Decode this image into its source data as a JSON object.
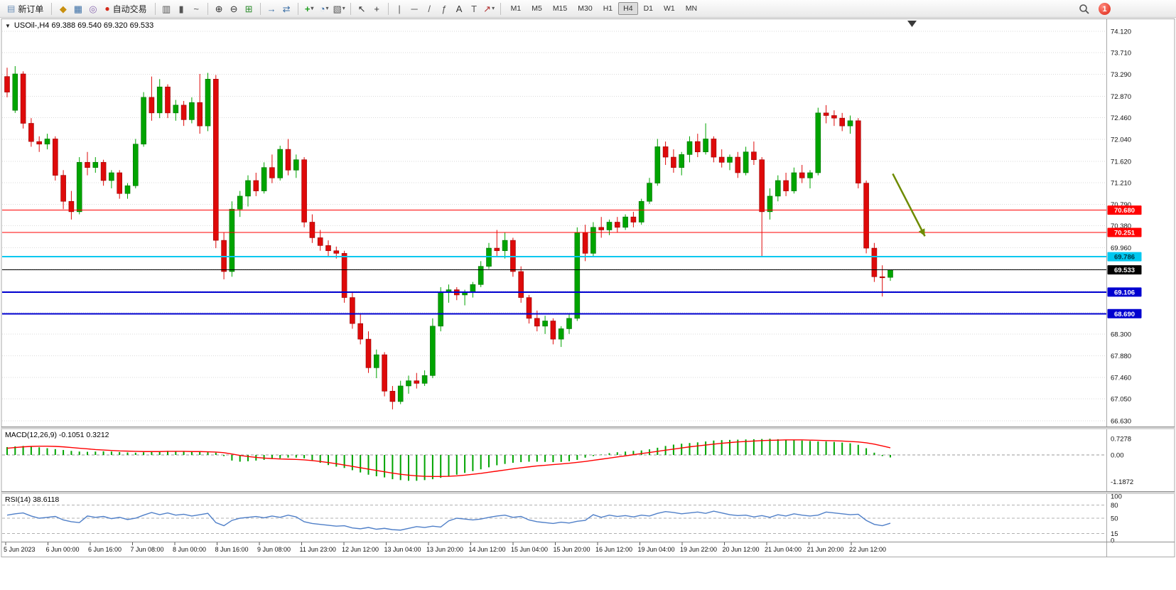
{
  "toolbar": {
    "new_order_label": "新订单",
    "auto_trading_label": "自动交易",
    "timeframes": [
      "M1",
      "M5",
      "M15",
      "M30",
      "H1",
      "H4",
      "D1",
      "W1",
      "MN"
    ],
    "active_timeframe": "H4",
    "notification_count": "1",
    "icons": {
      "new-order-icon": "▤",
      "market-watch-icon": "◆",
      "data-window-icon": "▦",
      "navigator-icon": "◎",
      "auto-trading-icon": "●",
      "bar-chart-icon": "▥",
      "candlestick-chart-icon": "▮",
      "line-chart-icon": "~",
      "zoom-in-icon": "⊕",
      "zoom-out-icon": "⊖",
      "tile-windows-icon": "⊞",
      "auto-scroll-icon": "→",
      "chart-shift-icon": "⇄",
      "add-indicator-icon": "+",
      "period-icon": "◔",
      "template-icon": "▧",
      "cursor-icon": "↖",
      "crosshair-icon": "+",
      "vertical-line-icon": "|",
      "horizontal-line-icon": "─",
      "trendline-icon": "/",
      "fibonacci-icon": "ƒ",
      "text-icon": "A",
      "label-icon": "T",
      "arrows-icon": "↗",
      "caret": "▾",
      "collapse-icon": "▼"
    }
  },
  "chart": {
    "symbol_text": "USOil-,H4 69.388 69.540 69.320 69.533"
  },
  "indicators": {
    "macd_label": "MACD(12,26,9) -0.1051 0.3212",
    "rsi_label": "RSI(14) 38.6118"
  },
  "chart_data": {
    "type": "candlestick",
    "symbol": "USOil-",
    "timeframe": "H4",
    "current_bar": {
      "open": 69.388,
      "high": 69.54,
      "low": 69.32,
      "close": 69.533
    },
    "y_range": [
      66.63,
      74.12
    ],
    "y_ticks": [
      "74.120",
      "73.710",
      "73.290",
      "72.870",
      "72.460",
      "72.040",
      "71.620",
      "71.210",
      "70.790",
      "70.380",
      "69.960",
      "69.540",
      "69.120",
      "68.710",
      "68.300",
      "67.880",
      "67.460",
      "67.050",
      "66.630"
    ],
    "x_labels": [
      "5 Jun 2023",
      "6 Jun 00:00",
      "6 Jun 16:00",
      "7 Jun 08:00",
      "8 Jun 00:00",
      "8 Jun 16:00",
      "9 Jun 08:00",
      "11 Jun 23:00",
      "12 Jun 12:00",
      "13 Jun 04:00",
      "13 Jun 20:00",
      "14 Jun 12:00",
      "15 Jun 04:00",
      "15 Jun 20:00",
      "16 Jun 12:00",
      "19 Jun 04:00",
      "19 Jun 22:00",
      "20 Jun 12:00",
      "21 Jun 04:00",
      "21 Jun 20:00",
      "22 Jun 12:00"
    ],
    "up_color": "#00A400",
    "down_color": "#DE0A0A",
    "candles": [
      [
        73.25,
        73.42,
        72.85,
        72.95
      ],
      [
        72.6,
        73.45,
        72.55,
        73.3
      ],
      [
        73.3,
        73.35,
        72.25,
        72.35
      ],
      [
        72.35,
        72.45,
        71.9,
        72.0
      ],
      [
        72.0,
        72.1,
        71.8,
        71.95
      ],
      [
        71.95,
        72.15,
        71.85,
        72.05
      ],
      [
        72.05,
        72.1,
        71.25,
        71.35
      ],
      [
        71.35,
        71.45,
        70.7,
        70.85
      ],
      [
        70.85,
        71.05,
        70.5,
        70.65
      ],
      [
        70.65,
        71.7,
        70.6,
        71.6
      ],
      [
        71.6,
        71.8,
        71.35,
        71.5
      ],
      [
        71.5,
        71.7,
        71.4,
        71.6
      ],
      [
        71.6,
        71.65,
        71.15,
        71.25
      ],
      [
        71.25,
        71.45,
        71.1,
        71.4
      ],
      [
        71.4,
        71.45,
        70.9,
        71.0
      ],
      [
        71.0,
        71.2,
        70.9,
        71.15
      ],
      [
        71.15,
        72.05,
        71.1,
        71.95
      ],
      [
        71.95,
        72.95,
        71.9,
        72.85
      ],
      [
        72.85,
        73.25,
        72.4,
        72.55
      ],
      [
        72.55,
        73.2,
        72.45,
        73.05
      ],
      [
        73.05,
        73.1,
        72.45,
        72.55
      ],
      [
        72.55,
        72.8,
        72.4,
        72.7
      ],
      [
        72.7,
        72.78,
        72.3,
        72.42
      ],
      [
        72.42,
        72.85,
        72.35,
        72.75
      ],
      [
        72.75,
        73.3,
        72.15,
        72.3
      ],
      [
        72.3,
        73.32,
        72.2,
        73.2
      ],
      [
        73.2,
        73.28,
        69.95,
        70.1
      ],
      [
        70.1,
        70.25,
        69.35,
        69.5
      ],
      [
        69.5,
        70.85,
        69.4,
        70.7
      ],
      [
        70.7,
        71.05,
        70.55,
        70.95
      ],
      [
        70.95,
        71.35,
        70.75,
        71.25
      ],
      [
        71.25,
        71.4,
        70.95,
        71.05
      ],
      [
        71.05,
        71.6,
        71.0,
        71.5
      ],
      [
        71.5,
        71.75,
        71.2,
        71.3
      ],
      [
        71.3,
        71.92,
        71.25,
        71.85
      ],
      [
        71.85,
        72.05,
        71.35,
        71.45
      ],
      [
        71.45,
        71.75,
        71.3,
        71.65
      ],
      [
        71.65,
        71.7,
        70.35,
        70.45
      ],
      [
        70.45,
        70.6,
        70.05,
        70.15
      ],
      [
        70.15,
        70.3,
        69.9,
        70.0
      ],
      [
        70.0,
        70.1,
        69.8,
        69.9
      ],
      [
        69.9,
        69.98,
        69.75,
        69.85
      ],
      [
        69.85,
        69.9,
        68.9,
        69.0
      ],
      [
        69.0,
        69.1,
        68.4,
        68.5
      ],
      [
        68.5,
        68.7,
        68.1,
        68.2
      ],
      [
        68.2,
        68.35,
        67.55,
        67.65
      ],
      [
        67.65,
        68.0,
        67.45,
        67.9
      ],
      [
        67.9,
        67.95,
        67.1,
        67.2
      ],
      [
        67.2,
        67.3,
        66.85,
        67.0
      ],
      [
        67.0,
        67.4,
        66.95,
        67.3
      ],
      [
        67.3,
        67.5,
        67.15,
        67.4
      ],
      [
        67.4,
        67.55,
        67.25,
        67.35
      ],
      [
        67.35,
        67.6,
        67.3,
        67.5
      ],
      [
        67.5,
        68.6,
        67.45,
        68.45
      ],
      [
        68.45,
        69.2,
        68.35,
        69.1
      ],
      [
        69.1,
        69.25,
        68.9,
        69.15
      ],
      [
        69.15,
        69.2,
        68.95,
        69.05
      ],
      [
        69.05,
        69.15,
        68.85,
        69.1
      ],
      [
        69.1,
        69.3,
        69.0,
        69.25
      ],
      [
        69.25,
        69.7,
        69.2,
        69.6
      ],
      [
        69.6,
        70.05,
        69.55,
        69.95
      ],
      [
        69.95,
        70.3,
        69.8,
        69.9
      ],
      [
        69.9,
        70.25,
        69.75,
        70.1
      ],
      [
        70.1,
        70.15,
        69.4,
        69.5
      ],
      [
        69.5,
        69.6,
        68.9,
        69.0
      ],
      [
        69.0,
        69.05,
        68.5,
        68.6
      ],
      [
        68.6,
        68.75,
        68.35,
        68.45
      ],
      [
        68.45,
        68.65,
        68.3,
        68.55
      ],
      [
        68.55,
        68.6,
        68.1,
        68.2
      ],
      [
        68.2,
        68.45,
        68.05,
        68.4
      ],
      [
        68.4,
        68.7,
        68.3,
        68.6
      ],
      [
        68.6,
        70.35,
        68.55,
        70.25
      ],
      [
        70.25,
        70.4,
        69.7,
        69.85
      ],
      [
        69.85,
        70.45,
        69.8,
        70.35
      ],
      [
        70.35,
        70.55,
        70.15,
        70.3
      ],
      [
        70.3,
        70.5,
        70.2,
        70.45
      ],
      [
        70.45,
        70.55,
        70.25,
        70.35
      ],
      [
        70.35,
        70.6,
        70.3,
        70.55
      ],
      [
        70.55,
        70.65,
        70.35,
        70.45
      ],
      [
        70.45,
        70.9,
        70.4,
        70.85
      ],
      [
        70.85,
        71.3,
        70.8,
        71.2
      ],
      [
        71.2,
        72.05,
        71.15,
        71.9
      ],
      [
        71.9,
        72.0,
        71.55,
        71.7
      ],
      [
        71.7,
        71.85,
        71.4,
        71.5
      ],
      [
        71.5,
        71.8,
        71.35,
        71.75
      ],
      [
        71.75,
        72.1,
        71.6,
        72.0
      ],
      [
        72.0,
        72.15,
        71.7,
        71.8
      ],
      [
        71.8,
        72.35,
        71.75,
        72.05
      ],
      [
        72.05,
        72.1,
        71.6,
        71.7
      ],
      [
        71.7,
        71.85,
        71.5,
        71.6
      ],
      [
        71.6,
        71.75,
        71.45,
        71.7
      ],
      [
        71.7,
        71.8,
        71.3,
        71.4
      ],
      [
        71.4,
        71.9,
        71.35,
        71.8
      ],
      [
        71.8,
        72.0,
        71.55,
        71.65
      ],
      [
        71.65,
        71.7,
        69.8,
        70.65
      ],
      [
        70.65,
        71.1,
        70.5,
        70.95
      ],
      [
        70.95,
        71.35,
        70.85,
        71.25
      ],
      [
        71.25,
        71.4,
        70.95,
        71.05
      ],
      [
        71.05,
        71.5,
        71.0,
        71.4
      ],
      [
        71.4,
        71.55,
        71.2,
        71.3
      ],
      [
        71.3,
        71.45,
        71.1,
        71.4
      ],
      [
        71.4,
        72.65,
        71.35,
        72.55
      ],
      [
        72.55,
        72.7,
        72.35,
        72.5
      ],
      [
        72.5,
        72.6,
        72.3,
        72.45
      ],
      [
        72.45,
        72.55,
        72.2,
        72.3
      ],
      [
        72.3,
        72.5,
        72.15,
        72.4
      ],
      [
        72.4,
        72.45,
        71.1,
        71.2
      ],
      [
        71.2,
        71.25,
        69.85,
        69.95
      ],
      [
        69.95,
        70.05,
        69.3,
        69.4
      ],
      [
        69.4,
        69.62,
        69.02,
        69.38
      ],
      [
        69.388,
        69.54,
        69.32,
        69.533
      ]
    ],
    "levels": [
      {
        "price": 70.68,
        "label": "70.680",
        "color": "#FF0000",
        "text_color": "#FFFFFF",
        "width": 1
      },
      {
        "price": 70.251,
        "label": "70.251",
        "color": "#FF0000",
        "text_color": "#FFFFFF",
        "width": 1
      },
      {
        "price": 69.786,
        "label": "69.786",
        "color": "#00C8F0",
        "text_color": "#00333F",
        "width": 2
      },
      {
        "price": 69.533,
        "label": "69.533",
        "color": "#000000",
        "text_color": "#FFFFFF",
        "width": 1,
        "role": "current-price"
      },
      {
        "price": 69.106,
        "label": "69.106",
        "color": "#0000D0",
        "text_color": "#FFFFFF",
        "width": 2
      },
      {
        "price": 68.69,
        "label": "68.690",
        "color": "#0000D0",
        "text_color": "#FFFFFF",
        "width": 2
      }
    ],
    "arrow_annotation": {
      "bar_from": 110.3,
      "price_from": 71.38,
      "bar_to": 114.3,
      "price_to": 70.18,
      "color": "#6E8B00"
    },
    "macd": {
      "name": "MACD",
      "params": "12,26,9",
      "value_main": -0.1051,
      "value_signal": 0.3212,
      "axis_ticks": [
        "0.7278",
        "0.00",
        "-1.1872"
      ],
      "hist_color": "#00A400",
      "signal_color": "#FF0000",
      "histogram": [
        0.35,
        0.38,
        0.4,
        0.38,
        0.34,
        0.3,
        0.26,
        0.22,
        0.18,
        0.15,
        0.14,
        0.15,
        0.16,
        0.15,
        0.13,
        0.11,
        0.1,
        0.12,
        0.15,
        0.17,
        0.18,
        0.17,
        0.15,
        0.14,
        0.13,
        0.12,
        0.1,
        -0.05,
        -0.25,
        -0.3,
        -0.28,
        -0.25,
        -0.22,
        -0.18,
        -0.15,
        -0.12,
        -0.12,
        -0.15,
        -0.25,
        -0.35,
        -0.45,
        -0.52,
        -0.58,
        -0.68,
        -0.78,
        -0.88,
        -0.95,
        -1.0,
        -1.08,
        -1.12,
        -1.15,
        -1.15,
        -1.12,
        -1.08,
        -1.02,
        -0.95,
        -0.88,
        -0.8,
        -0.72,
        -0.64,
        -0.55,
        -0.46,
        -0.4,
        -0.35,
        -0.32,
        -0.3,
        -0.3,
        -0.31,
        -0.32,
        -0.31,
        -0.28,
        -0.22,
        -0.12,
        -0.05,
        0.02,
        0.08,
        0.12,
        0.15,
        0.18,
        0.2,
        0.25,
        0.32,
        0.4,
        0.46,
        0.5,
        0.53,
        0.56,
        0.6,
        0.64,
        0.66,
        0.67,
        0.68,
        0.69,
        0.7,
        0.71,
        0.72,
        0.7,
        0.68,
        0.66,
        0.64,
        0.62,
        0.6,
        0.6,
        0.58,
        0.55,
        0.52,
        0.45,
        0.3,
        0.1,
        -0.05,
        -0.11
      ],
      "signal": [
        0.3,
        0.33,
        0.36,
        0.38,
        0.39,
        0.39,
        0.38,
        0.36,
        0.33,
        0.3,
        0.27,
        0.24,
        0.22,
        0.2,
        0.18,
        0.17,
        0.16,
        0.15,
        0.15,
        0.15,
        0.16,
        0.16,
        0.16,
        0.15,
        0.15,
        0.14,
        0.13,
        0.1,
        0.04,
        -0.02,
        -0.07,
        -0.11,
        -0.14,
        -0.16,
        -0.18,
        -0.19,
        -0.2,
        -0.22,
        -0.25,
        -0.29,
        -0.34,
        -0.39,
        -0.45,
        -0.51,
        -0.57,
        -0.63,
        -0.69,
        -0.75,
        -0.81,
        -0.86,
        -0.9,
        -0.93,
        -0.95,
        -0.96,
        -0.96,
        -0.95,
        -0.93,
        -0.9,
        -0.86,
        -0.82,
        -0.77,
        -0.72,
        -0.67,
        -0.62,
        -0.57,
        -0.53,
        -0.49,
        -0.46,
        -0.43,
        -0.4,
        -0.37,
        -0.33,
        -0.29,
        -0.24,
        -0.19,
        -0.14,
        -0.09,
        -0.04,
        0.01,
        0.06,
        0.11,
        0.16,
        0.21,
        0.26,
        0.31,
        0.36,
        0.4,
        0.44,
        0.48,
        0.52,
        0.55,
        0.58,
        0.6,
        0.62,
        0.64,
        0.65,
        0.66,
        0.67,
        0.67,
        0.67,
        0.66,
        0.65,
        0.64,
        0.63,
        0.62,
        0.6,
        0.58,
        0.54,
        0.48,
        0.4,
        0.32
      ]
    },
    "rsi": {
      "name": "RSI",
      "params": "14",
      "value": 38.6118,
      "axis_ticks": [
        "100",
        "80",
        "50",
        "15",
        "0"
      ],
      "levels": [
        80,
        50,
        15
      ],
      "line_color": "#4F7FC8",
      "values": [
        57,
        60,
        62,
        55,
        50,
        52,
        54,
        46,
        42,
        40,
        55,
        52,
        54,
        49,
        52,
        47,
        50,
        57,
        63,
        58,
        62,
        57,
        59,
        55,
        58,
        61,
        40,
        33,
        45,
        50,
        52,
        54,
        51,
        55,
        52,
        57,
        53,
        42,
        38,
        36,
        34,
        32,
        33,
        28,
        26,
        29,
        25,
        27,
        24,
        23,
        27,
        31,
        29,
        32,
        30,
        44,
        50,
        48,
        46,
        48,
        52,
        55,
        57,
        52,
        54,
        46,
        42,
        40,
        38,
        41,
        39,
        43,
        45,
        58,
        52,
        57,
        54,
        56,
        53,
        57,
        55,
        61,
        65,
        63,
        60,
        62,
        64,
        61,
        66,
        62,
        58,
        56,
        57,
        53,
        56,
        52,
        58,
        55,
        60,
        57,
        55,
        57,
        64,
        62,
        60,
        58,
        59,
        45,
        36,
        33,
        38.61
      ]
    }
  }
}
